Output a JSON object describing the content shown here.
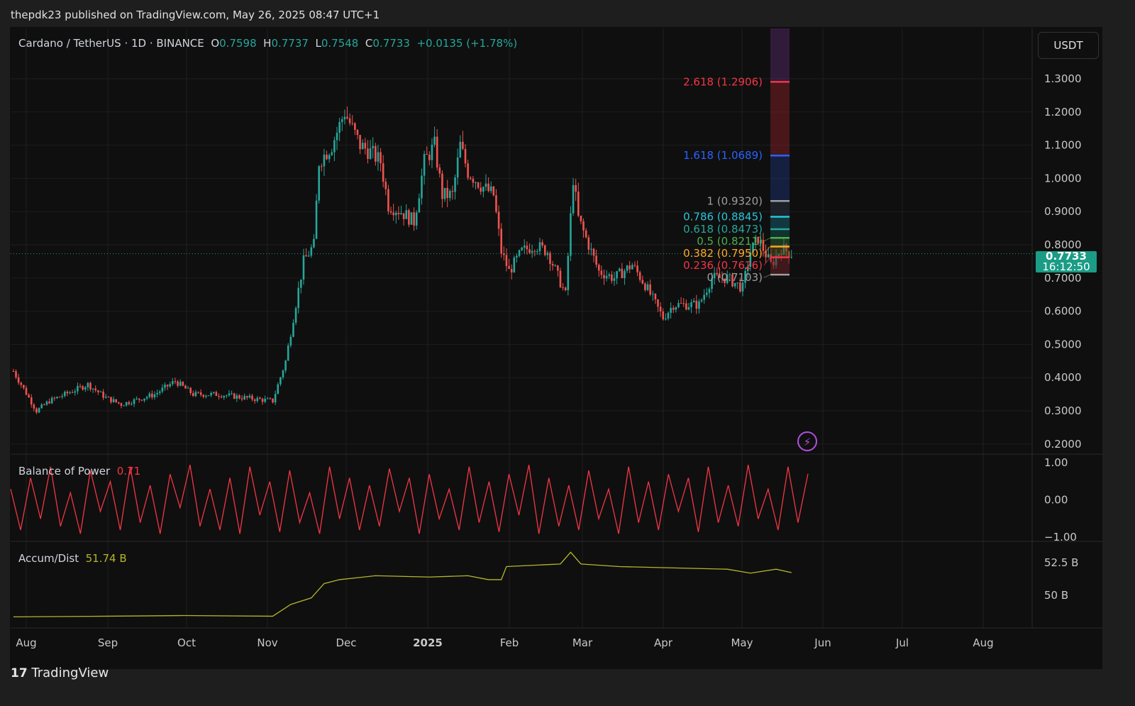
{
  "header": {
    "published": "thepdk23 published on TradingView.com, May 26, 2025 08:47 UTC+1"
  },
  "legend": {
    "symbol": "Cardano / TetherUS · 1D · BINANCE",
    "o_label": "O",
    "open": "0.7598",
    "h_label": "H",
    "high": "0.7737",
    "l_label": "L",
    "low": "0.7548",
    "c_label": "C",
    "close": "0.7733",
    "change": "+0.0135 (+1.78%)"
  },
  "price_axis": {
    "currency": "USDT",
    "last_price": "0.7733",
    "countdown": "16:12:50"
  },
  "indicators": {
    "bop": {
      "name": "Balance of Power",
      "value": "0.71"
    },
    "ad": {
      "name": "Accum/Dist",
      "value": "51.74 B"
    }
  },
  "footer": {
    "brand": "TradingView"
  },
  "colors": {
    "up": "#26a69a",
    "down": "#ef5350",
    "bop": "#f23645",
    "ad": "#b5b52b",
    "last": "#1a9c86"
  },
  "icons": {
    "alert": "lightning-icon",
    "logo": "tradingview-logo"
  },
  "chart_data": [
    {
      "type": "candlestick",
      "title": "Cardano / TetherUS · 1D · BINANCE",
      "ylim": [
        0.2,
        1.3
      ],
      "yticks": [
        "1.3000",
        "1.2000",
        "1.1000",
        "1.0000",
        "0.9000",
        "0.8000",
        "0.7000",
        "0.6000",
        "0.5000",
        "0.4000",
        "0.3000",
        "0.2000"
      ],
      "xticks": [
        "Aug",
        "Sep",
        "Oct",
        "Nov",
        "Dec",
        "2025",
        "Feb",
        "Mar",
        "Apr",
        "May",
        "Jun",
        "Jul",
        "Aug"
      ],
      "grid": true,
      "closes": [
        [
          "2024-07-27",
          0.42
        ],
        [
          "2024-08-05",
          0.3
        ],
        [
          "2024-08-10",
          0.33
        ],
        [
          "2024-08-25",
          0.38
        ],
        [
          "2024-09-01",
          0.34
        ],
        [
          "2024-09-07",
          0.32
        ],
        [
          "2024-09-20",
          0.35
        ],
        [
          "2024-09-28",
          0.39
        ],
        [
          "2024-10-05",
          0.35
        ],
        [
          "2024-10-15",
          0.35
        ],
        [
          "2024-10-25",
          0.34
        ],
        [
          "2024-11-05",
          0.33
        ],
        [
          "2024-11-10",
          0.45
        ],
        [
          "2024-11-13",
          0.58
        ],
        [
          "2024-11-17",
          0.75
        ],
        [
          "2024-11-21",
          0.8
        ],
        [
          "2024-11-23",
          1.05
        ],
        [
          "2024-11-28",
          1.1
        ],
        [
          "2024-12-03",
          1.2
        ],
        [
          "2024-12-06",
          1.15
        ],
        [
          "2024-12-09",
          1.1
        ],
        [
          "2024-12-13",
          1.08
        ],
        [
          "2024-12-17",
          1.05
        ],
        [
          "2024-12-20",
          0.92
        ],
        [
          "2024-12-25",
          0.9
        ],
        [
          "2024-12-30",
          0.87
        ],
        [
          "2025-01-03",
          1.05
        ],
        [
          "2025-01-07",
          1.1
        ],
        [
          "2025-01-10",
          0.95
        ],
        [
          "2025-01-14",
          0.95
        ],
        [
          "2025-01-17",
          1.1
        ],
        [
          "2025-01-20",
          1.02
        ],
        [
          "2025-01-25",
          0.98
        ],
        [
          "2025-01-30",
          0.95
        ],
        [
          "2025-02-02",
          0.78
        ],
        [
          "2025-02-05",
          0.72
        ],
        [
          "2025-02-10",
          0.78
        ],
        [
          "2025-02-15",
          0.8
        ],
        [
          "2025-02-20",
          0.78
        ],
        [
          "2025-02-27",
          0.65
        ],
        [
          "2025-03-02",
          1.0
        ],
        [
          "2025-03-04",
          0.88
        ],
        [
          "2025-03-08",
          0.8
        ],
        [
          "2025-03-12",
          0.72
        ],
        [
          "2025-03-18",
          0.7
        ],
        [
          "2025-03-25",
          0.74
        ],
        [
          "2025-03-30",
          0.68
        ],
        [
          "2025-04-06",
          0.58
        ],
        [
          "2025-04-10",
          0.62
        ],
        [
          "2025-04-15",
          0.62
        ],
        [
          "2025-04-20",
          0.62
        ],
        [
          "2025-04-25",
          0.7
        ],
        [
          "2025-05-01",
          0.7
        ],
        [
          "2025-05-07",
          0.67
        ],
        [
          "2025-05-10",
          0.78
        ],
        [
          "2025-05-13",
          0.82
        ],
        [
          "2025-05-18",
          0.74
        ],
        [
          "2025-05-22",
          0.79
        ],
        [
          "2025-05-26",
          0.7733
        ]
      ],
      "fibonacci": [
        {
          "label": "2.618 (1.2906)",
          "price": 1.2906,
          "color": "#f23645"
        },
        {
          "label": "1.618 (1.0689)",
          "price": 1.0689,
          "color": "#2962ff"
        },
        {
          "label": "1 (0.9320)",
          "price": 0.932,
          "color": "#9e9e9e"
        },
        {
          "label": "0.786 (0.8845)",
          "price": 0.8845,
          "color": "#26c6da"
        },
        {
          "label": "0.618 (0.8473)",
          "price": 0.8473,
          "color": "#26a69a"
        },
        {
          "label": "0.5 (0.8211)",
          "price": 0.8211,
          "color": "#4caf50"
        },
        {
          "label": "0.382 (0.7950)",
          "price": 0.795,
          "color": "#ffa726"
        },
        {
          "label": "0.236 (0.7626)",
          "price": 0.7626,
          "color": "#f23645"
        },
        {
          "label": "0 (0.7103)",
          "price": 0.7103,
          "color": "#9e9e9e"
        }
      ]
    },
    {
      "type": "line",
      "title": "Balance of Power",
      "ylim": [
        -1,
        1
      ],
      "yticks": [
        "1.00",
        "0.00",
        "−1.00"
      ],
      "values": [
        0.3,
        -0.8,
        0.6,
        -0.5,
        0.9,
        -0.7,
        0.2,
        -0.9,
        0.8,
        -0.3,
        0.5,
        -0.8,
        0.9,
        -0.6,
        0.4,
        -0.9,
        0.7,
        -0.2,
        0.95,
        -0.7,
        0.3,
        -0.8,
        0.6,
        -0.9,
        0.9,
        -0.4,
        0.5,
        -0.85,
        0.8,
        -0.6,
        0.2,
        -0.9,
        0.9,
        -0.5,
        0.6,
        -0.8,
        0.4,
        -0.7,
        0.85,
        -0.3,
        0.6,
        -0.9,
        0.7,
        -0.5,
        0.3,
        -0.8,
        0.9,
        -0.6,
        0.5,
        -0.85,
        0.7,
        -0.4,
        0.95,
        -0.9,
        0.6,
        -0.7,
        0.4,
        -0.8,
        0.8,
        -0.5,
        0.3,
        -0.9,
        0.9,
        -0.6,
        0.5,
        -0.8,
        0.7,
        -0.3,
        0.6,
        -0.85,
        0.9,
        -0.6,
        0.4,
        -0.7,
        0.95,
        -0.5,
        0.3,
        -0.8,
        0.9,
        -0.6,
        0.71
      ]
    },
    {
      "type": "line",
      "title": "Accum/Dist",
      "yticks": [
        "52.5 B",
        "50 B"
      ],
      "values": [
        [
          "2024-07-27",
          48.35
        ],
        [
          "2024-09-01",
          48.4
        ],
        [
          "2024-10-01",
          48.45
        ],
        [
          "2024-11-05",
          48.4
        ],
        [
          "2024-11-12",
          49.3
        ],
        [
          "2024-11-20",
          49.8
        ],
        [
          "2024-11-25",
          50.9
        ],
        [
          "2024-12-01",
          51.2
        ],
        [
          "2024-12-15",
          51.5
        ],
        [
          "2025-01-05",
          51.4
        ],
        [
          "2025-01-20",
          51.5
        ],
        [
          "2025-01-28",
          51.2
        ],
        [
          "2025-02-02",
          51.2
        ],
        [
          "2025-02-04",
          52.2
        ],
        [
          "2025-02-25",
          52.4
        ],
        [
          "2025-03-01",
          53.3
        ],
        [
          "2025-03-05",
          52.4
        ],
        [
          "2025-03-20",
          52.2
        ],
        [
          "2025-04-10",
          52.1
        ],
        [
          "2025-05-01",
          52.0
        ],
        [
          "2025-05-10",
          51.7
        ],
        [
          "2025-05-20",
          52.0
        ],
        [
          "2025-05-26",
          51.74
        ]
      ]
    }
  ]
}
